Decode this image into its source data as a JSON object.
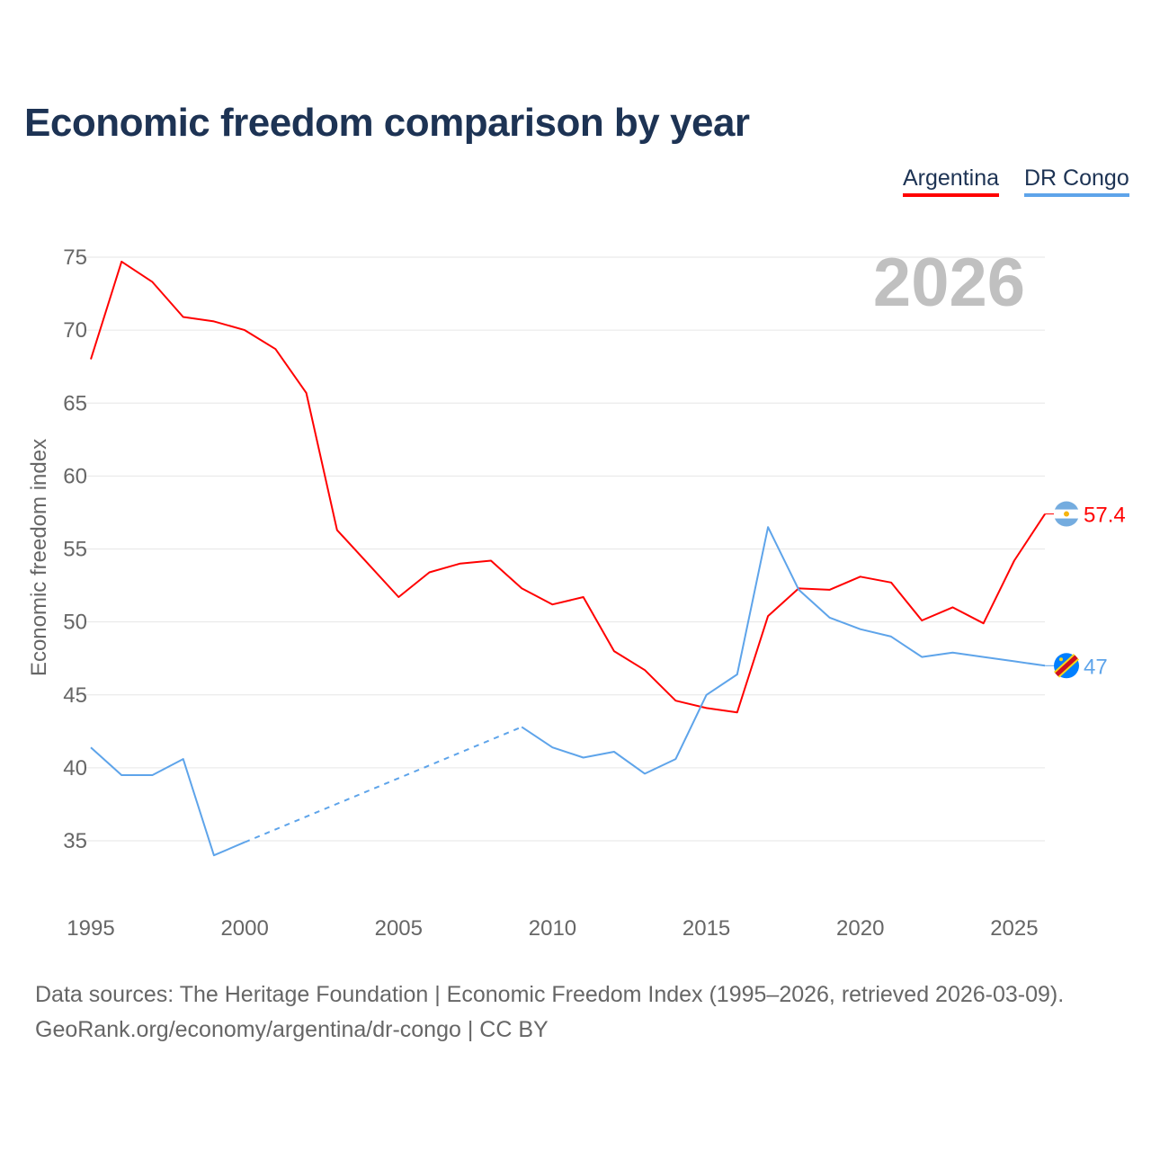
{
  "chart_data": {
    "type": "line",
    "title": "Economic freedom comparison by year",
    "ylabel": "Economic freedom index",
    "xlabel": "",
    "year_watermark": "2026",
    "ylim": [
      30,
      75
    ],
    "xlim": [
      1995,
      2026
    ],
    "yticks": [
      35,
      40,
      45,
      50,
      55,
      60,
      65,
      70,
      75
    ],
    "xticks": [
      1995,
      2000,
      2005,
      2010,
      2015,
      2020,
      2025
    ],
    "legend_position": "top-right",
    "series": [
      {
        "name": "Argentina",
        "color": "#ff0000",
        "end_label": "57.4",
        "x": [
          1995,
          1996,
          1997,
          1998,
          1999,
          2000,
          2001,
          2002,
          2003,
          2004,
          2005,
          2006,
          2007,
          2008,
          2009,
          2010,
          2011,
          2012,
          2013,
          2014,
          2015,
          2016,
          2017,
          2018,
          2019,
          2020,
          2021,
          2022,
          2023,
          2024,
          2025,
          2026
        ],
        "values": [
          68.0,
          74.7,
          73.3,
          70.9,
          70.6,
          70.0,
          68.7,
          65.7,
          56.3,
          54.0,
          51.7,
          53.4,
          54.0,
          54.2,
          52.3,
          51.2,
          51.7,
          48.0,
          46.7,
          44.6,
          44.1,
          43.8,
          50.4,
          52.3,
          52.2,
          53.1,
          52.7,
          50.1,
          51.0,
          49.9,
          54.2,
          57.4
        ]
      },
      {
        "name": "DR Congo",
        "color": "#5ea4ea",
        "end_label": "47",
        "x": [
          1995,
          1996,
          1997,
          1998,
          1999,
          2000,
          2009,
          2010,
          2011,
          2012,
          2013,
          2014,
          2015,
          2016,
          2017,
          2018,
          2019,
          2020,
          2021,
          2022,
          2023,
          2024,
          2025,
          2026
        ],
        "values": [
          41.4,
          39.5,
          39.5,
          40.6,
          34.0,
          34.9,
          42.8,
          41.4,
          40.7,
          41.1,
          39.6,
          40.6,
          45.0,
          46.4,
          56.5,
          52.2,
          50.3,
          49.5,
          49.0,
          47.6,
          47.9,
          47.6,
          47.3,
          47.0
        ],
        "gap_dashed": [
          2000,
          2009
        ]
      }
    ]
  },
  "footer": {
    "line1": "Data sources: The Heritage Foundation | Economic Freedom Index (1995–2026, retrieved 2026-03-09).",
    "line2": "GeoRank.org/economy/argentina/dr-congo | CC BY"
  }
}
